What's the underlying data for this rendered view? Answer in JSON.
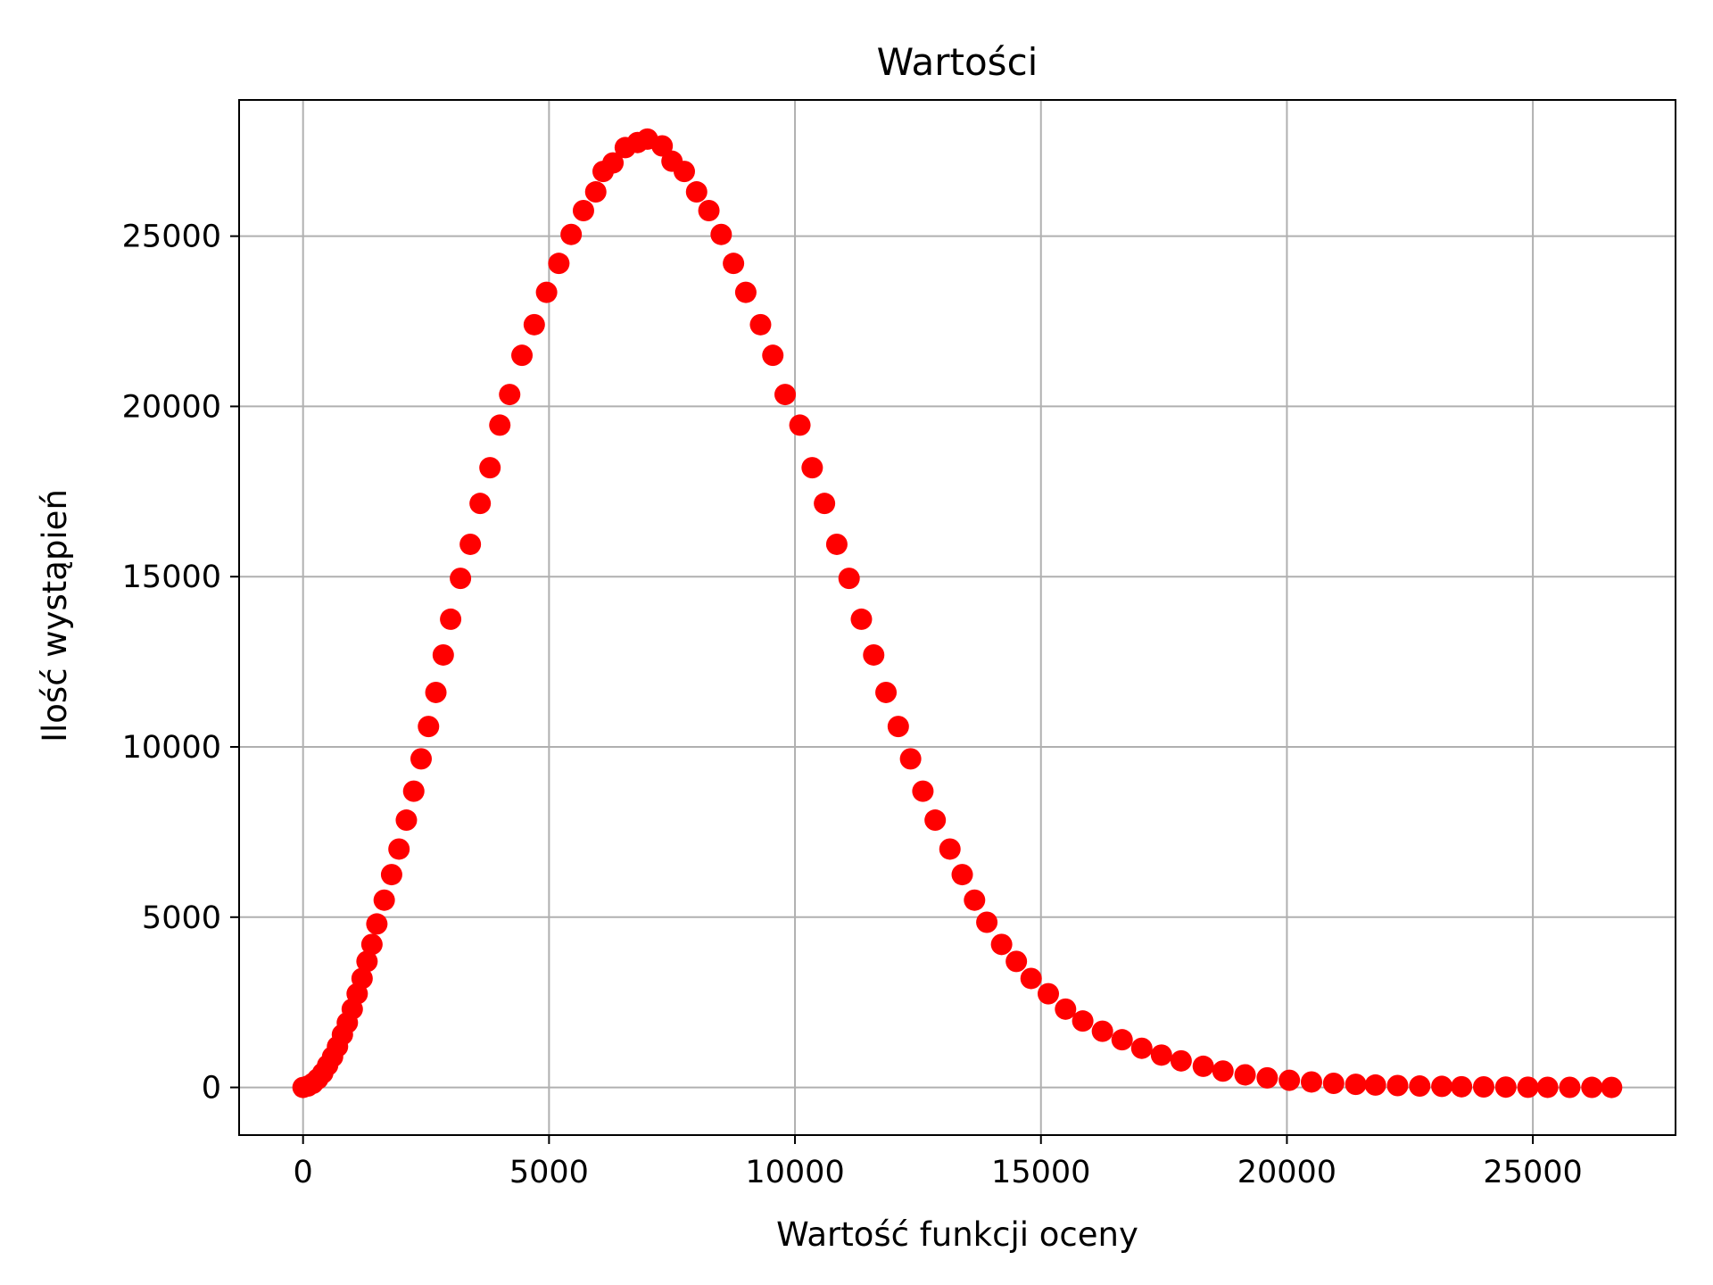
{
  "chart_data": {
    "type": "scatter",
    "title": "Wartości",
    "xlabel": "Wartość funkcji oceny",
    "ylabel": "Ilość wystąpień",
    "xlim": [
      -1300,
      27900
    ],
    "ylim": [
      -1400,
      29000
    ],
    "x_ticks": [
      0,
      5000,
      10000,
      15000,
      20000,
      25000
    ],
    "y_ticks": [
      0,
      5000,
      10000,
      15000,
      20000,
      25000
    ],
    "x_tick_labels": [
      "0",
      "5000",
      "10000",
      "15000",
      "20000",
      "25000"
    ],
    "y_tick_labels": [
      "0",
      "5000",
      "10000",
      "15000",
      "20000",
      "25000"
    ],
    "grid": true,
    "marker_color": "#ff0000",
    "series": [
      {
        "x": [
          0,
          100,
          200,
          300,
          400,
          500,
          600,
          700,
          800,
          900,
          1000,
          1100,
          1200,
          1300,
          1400,
          1500,
          1650,
          1800,
          1950,
          2100,
          2250,
          2400,
          2550,
          2700,
          2850,
          3000,
          3200,
          3400,
          3600,
          3800,
          4000,
          4200,
          4450,
          4700,
          4950,
          5200,
          5450,
          5700,
          5950,
          6100,
          6300,
          6550,
          6800,
          7000,
          7300,
          7500,
          7750,
          8000,
          8250,
          8500,
          8750,
          9000,
          9300,
          9550,
          9800,
          10100,
          10350,
          10600,
          10850,
          11100,
          11350,
          11600,
          11850,
          12100,
          12350,
          12600,
          12850,
          13150,
          13400,
          13650,
          13900,
          14200,
          14500,
          14800,
          15150,
          15500,
          15850,
          16250,
          16650,
          17050,
          17450,
          17850,
          18300,
          18700,
          19150,
          19600,
          20050,
          20500,
          20950,
          21400,
          21800,
          22250,
          22700,
          23150,
          23550,
          24000,
          24450,
          24900,
          25300,
          25750,
          26200,
          26600
        ],
        "y": [
          0,
          40,
          120,
          250,
          420,
          650,
          900,
          1200,
          1550,
          1900,
          2300,
          2750,
          3200,
          3700,
          4200,
          4800,
          5500,
          6250,
          7000,
          7850,
          8700,
          9650,
          10600,
          11600,
          12700,
          13750,
          14950,
          15950,
          17150,
          18200,
          19450,
          20350,
          21500,
          22400,
          23350,
          24200,
          25050,
          25750,
          26300,
          26900,
          27150,
          27600,
          27750,
          27850,
          27650,
          27200,
          26900,
          26300,
          25750,
          25050,
          24200,
          23350,
          22400,
          21500,
          20350,
          19450,
          18200,
          17150,
          15950,
          14950,
          13750,
          12700,
          11600,
          10600,
          9650,
          8700,
          7850,
          7000,
          6250,
          5500,
          4850,
          4200,
          3700,
          3200,
          2750,
          2300,
          1950,
          1650,
          1400,
          1150,
          950,
          780,
          620,
          480,
          370,
          280,
          210,
          160,
          120,
          90,
          70,
          55,
          40,
          30,
          20,
          15,
          10,
          5,
          3,
          2,
          1,
          0
        ]
      }
    ]
  }
}
